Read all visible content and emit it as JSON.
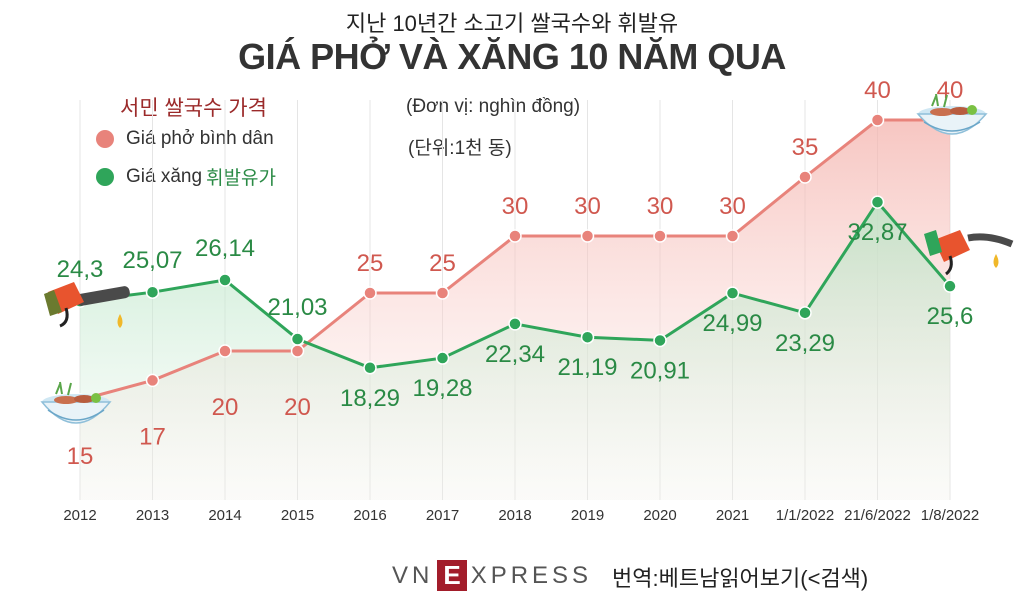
{
  "header": {
    "subtitle_ko": "지난 10년간 소고기 쌀국수와 휘발유",
    "title": "GIÁ PHỞ VÀ XĂNG 10 NĂM QUA",
    "unit_vi": "(Đơn vị: nghìn đồng)",
    "unit_ko": "(단위:1천 동)"
  },
  "legend": {
    "title_ko": "서민 쌀국수 가격",
    "pho_label": "Giá phở bình dân",
    "xang_label": "Giá xăng",
    "xang_label_ko": "휘발유가"
  },
  "chart_data": {
    "type": "line",
    "title": "GIÁ PHỞ VÀ XĂNG 10 NĂM QUA",
    "categories": [
      "2012",
      "2013",
      "2014",
      "2015",
      "2016",
      "2017",
      "2018",
      "2019",
      "2020",
      "2021",
      "1/1/2022",
      "21/6/2022",
      "1/8/2022"
    ],
    "series": [
      {
        "name": "Giá phở bình dân",
        "color": "#e8837b",
        "values": [
          15,
          17,
          20,
          20,
          25,
          25,
          30,
          30,
          30,
          30,
          35,
          40,
          40
        ],
        "labels": [
          "15",
          "17",
          "20",
          "20",
          "25",
          "25",
          "30",
          "30",
          "30",
          "30",
          "35",
          "40",
          "40"
        ]
      },
      {
        "name": "Giá xăng",
        "color": "#2fa55a",
        "values": [
          24.3,
          25.07,
          26.14,
          21.03,
          18.29,
          19.28,
          22.34,
          21.19,
          20.91,
          24.99,
          23.29,
          32.87,
          25.6
        ],
        "labels": [
          "24,3",
          "25,07",
          "26,14",
          "21,03",
          "18,29",
          "19,28",
          "22,34",
          "21,19",
          "20,91",
          "24,99",
          "23,29",
          "32,87",
          "25,6"
        ]
      }
    ],
    "ylabel": "nghìn đồng",
    "xlabel": "",
    "grid": true
  },
  "footer": {
    "brand_prefix": "VN",
    "brand_e": "E",
    "brand_suffix": "XPRESS",
    "note_ko": "번역:베트남읽어보기(<검색)"
  },
  "icons": [
    "pho-bowl-icon",
    "fuel-nozzle-icon"
  ]
}
